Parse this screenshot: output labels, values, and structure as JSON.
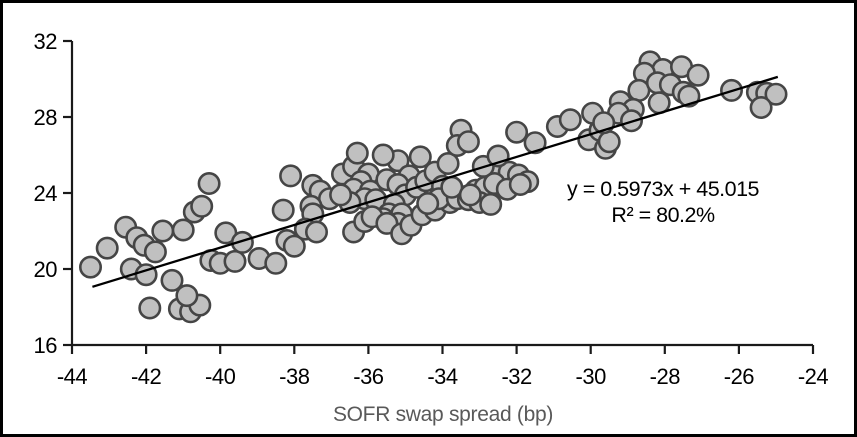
{
  "chart_data": {
    "type": "scatter",
    "title": "",
    "xlabel": "SOFR swap spread (bp)",
    "ylabel": "",
    "xlim": [
      -44,
      -24
    ],
    "ylim": [
      16,
      32
    ],
    "x_ticks": [
      -44,
      -42,
      -40,
      -38,
      -36,
      -34,
      -32,
      -30,
      -28,
      -26,
      -24
    ],
    "y_ticks": [
      16,
      20,
      24,
      28,
      32
    ],
    "grid": false,
    "legend": "none",
    "series": [
      {
        "name": "observations",
        "marker": "circle",
        "points": [
          [
            -43.5,
            20.1
          ],
          [
            -43.05,
            21.1
          ],
          [
            -42.55,
            22.2
          ],
          [
            -42.25,
            21.65
          ],
          [
            -42.4,
            20.0
          ],
          [
            -42.05,
            21.25
          ],
          [
            -42.0,
            19.7
          ],
          [
            -41.75,
            20.9
          ],
          [
            -41.55,
            22.0
          ],
          [
            -41.9,
            17.95
          ],
          [
            -41.3,
            19.4
          ],
          [
            -41.1,
            17.9
          ],
          [
            -40.8,
            17.75
          ],
          [
            -40.55,
            18.1
          ],
          [
            -40.9,
            18.6
          ],
          [
            -41.0,
            22.05
          ],
          [
            -40.7,
            23.0
          ],
          [
            -40.5,
            23.3
          ],
          [
            -40.3,
            24.5
          ],
          [
            -40.25,
            20.45
          ],
          [
            -40.0,
            20.3
          ],
          [
            -39.85,
            21.9
          ],
          [
            -39.6,
            20.4
          ],
          [
            -39.4,
            21.4
          ],
          [
            -38.95,
            20.55
          ],
          [
            -38.5,
            20.3
          ],
          [
            -38.3,
            23.1
          ],
          [
            -38.1,
            24.9
          ],
          [
            -38.2,
            21.5
          ],
          [
            -38.0,
            21.2
          ],
          [
            -37.5,
            24.4
          ],
          [
            -37.3,
            24.1
          ],
          [
            -37.05,
            23.7
          ],
          [
            -37.55,
            23.3
          ],
          [
            -37.5,
            22.9
          ],
          [
            -37.7,
            22.1
          ],
          [
            -37.4,
            21.95
          ],
          [
            -36.7,
            25.0
          ],
          [
            -36.4,
            25.4
          ],
          [
            -36.3,
            26.1
          ],
          [
            -36.0,
            25.0
          ],
          [
            -36.2,
            24.6
          ],
          [
            -36.4,
            24.2
          ],
          [
            -35.95,
            24.1
          ],
          [
            -36.1,
            23.7
          ],
          [
            -36.5,
            23.5
          ],
          [
            -36.75,
            23.9
          ],
          [
            -35.8,
            23.65
          ],
          [
            -35.5,
            24.7
          ],
          [
            -35.2,
            25.7
          ],
          [
            -35.6,
            26.0
          ],
          [
            -34.9,
            24.9
          ],
          [
            -35.2,
            24.45
          ],
          [
            -35.0,
            23.9
          ],
          [
            -35.3,
            23.4
          ],
          [
            -35.45,
            22.9
          ],
          [
            -35.6,
            22.65
          ],
          [
            -35.1,
            22.9
          ],
          [
            -35.2,
            22.4
          ],
          [
            -36.4,
            21.95
          ],
          [
            -36.1,
            22.5
          ],
          [
            -35.9,
            22.75
          ],
          [
            -35.5,
            22.4
          ],
          [
            -35.1,
            21.85
          ],
          [
            -34.85,
            22.3
          ],
          [
            -34.55,
            22.85
          ],
          [
            -34.2,
            23.1
          ],
          [
            -33.8,
            23.5
          ],
          [
            -33.45,
            23.8
          ],
          [
            -34.7,
            24.3
          ],
          [
            -34.45,
            24.65
          ],
          [
            -34.2,
            25.1
          ],
          [
            -34.0,
            24.35
          ],
          [
            -34.1,
            23.7
          ],
          [
            -34.4,
            23.45
          ],
          [
            -33.6,
            23.7
          ],
          [
            -33.75,
            24.3
          ],
          [
            -33.1,
            24.15
          ],
          [
            -33.3,
            23.65
          ],
          [
            -32.8,
            24.05
          ],
          [
            -33.85,
            25.55
          ],
          [
            -34.6,
            25.9
          ],
          [
            -33.5,
            27.3
          ],
          [
            -33.6,
            26.5
          ],
          [
            -33.3,
            26.7
          ],
          [
            -32.0,
            27.2
          ],
          [
            -31.5,
            26.65
          ],
          [
            -30.05,
            26.8
          ],
          [
            -29.6,
            26.35
          ],
          [
            -29.75,
            27.3
          ],
          [
            -29.5,
            26.7
          ],
          [
            -32.55,
            25.0
          ],
          [
            -32.2,
            25.1
          ],
          [
            -31.95,
            24.95
          ],
          [
            -31.7,
            24.6
          ],
          [
            -32.9,
            25.4
          ],
          [
            -32.5,
            25.95
          ],
          [
            -32.85,
            24.3
          ],
          [
            -32.6,
            24.5
          ],
          [
            -32.25,
            24.2
          ],
          [
            -31.9,
            24.45
          ],
          [
            -33.0,
            23.5
          ],
          [
            -32.7,
            23.4
          ],
          [
            -33.25,
            23.9
          ],
          [
            -28.4,
            30.9
          ],
          [
            -28.05,
            30.5
          ],
          [
            -28.55,
            30.3
          ],
          [
            -27.55,
            30.65
          ],
          [
            -27.1,
            30.2
          ],
          [
            -28.7,
            29.4
          ],
          [
            -28.2,
            29.8
          ],
          [
            -27.85,
            29.7
          ],
          [
            -27.5,
            29.3
          ],
          [
            -28.15,
            28.75
          ],
          [
            -27.35,
            29.1
          ],
          [
            -29.2,
            28.8
          ],
          [
            -28.85,
            28.4
          ],
          [
            -29.95,
            28.2
          ],
          [
            -29.25,
            28.2
          ],
          [
            -29.65,
            27.7
          ],
          [
            -28.9,
            27.8
          ],
          [
            -30.9,
            27.5
          ],
          [
            -30.55,
            27.85
          ],
          [
            -26.2,
            29.4
          ],
          [
            -25.5,
            29.3
          ],
          [
            -25.25,
            29.25
          ],
          [
            -25.0,
            29.2
          ],
          [
            -25.4,
            28.5
          ]
        ]
      }
    ],
    "trendline": {
      "slope": 0.5973,
      "intercept": 45.015,
      "x_start": -43.45,
      "x_end": -24.95,
      "equation_label": "y = 0.5973x + 45.015",
      "r2_label": "R² = 80.2%"
    },
    "style": {
      "marker_fill": "#c0c0c0",
      "marker_stroke": "#454545",
      "axis_color": "#1a1a1a",
      "tick_label_color": "#000000",
      "axis_title_color": "#595959",
      "trendline_color": "#000000",
      "background": "#ffffff",
      "frame_border": "#000000"
    }
  }
}
